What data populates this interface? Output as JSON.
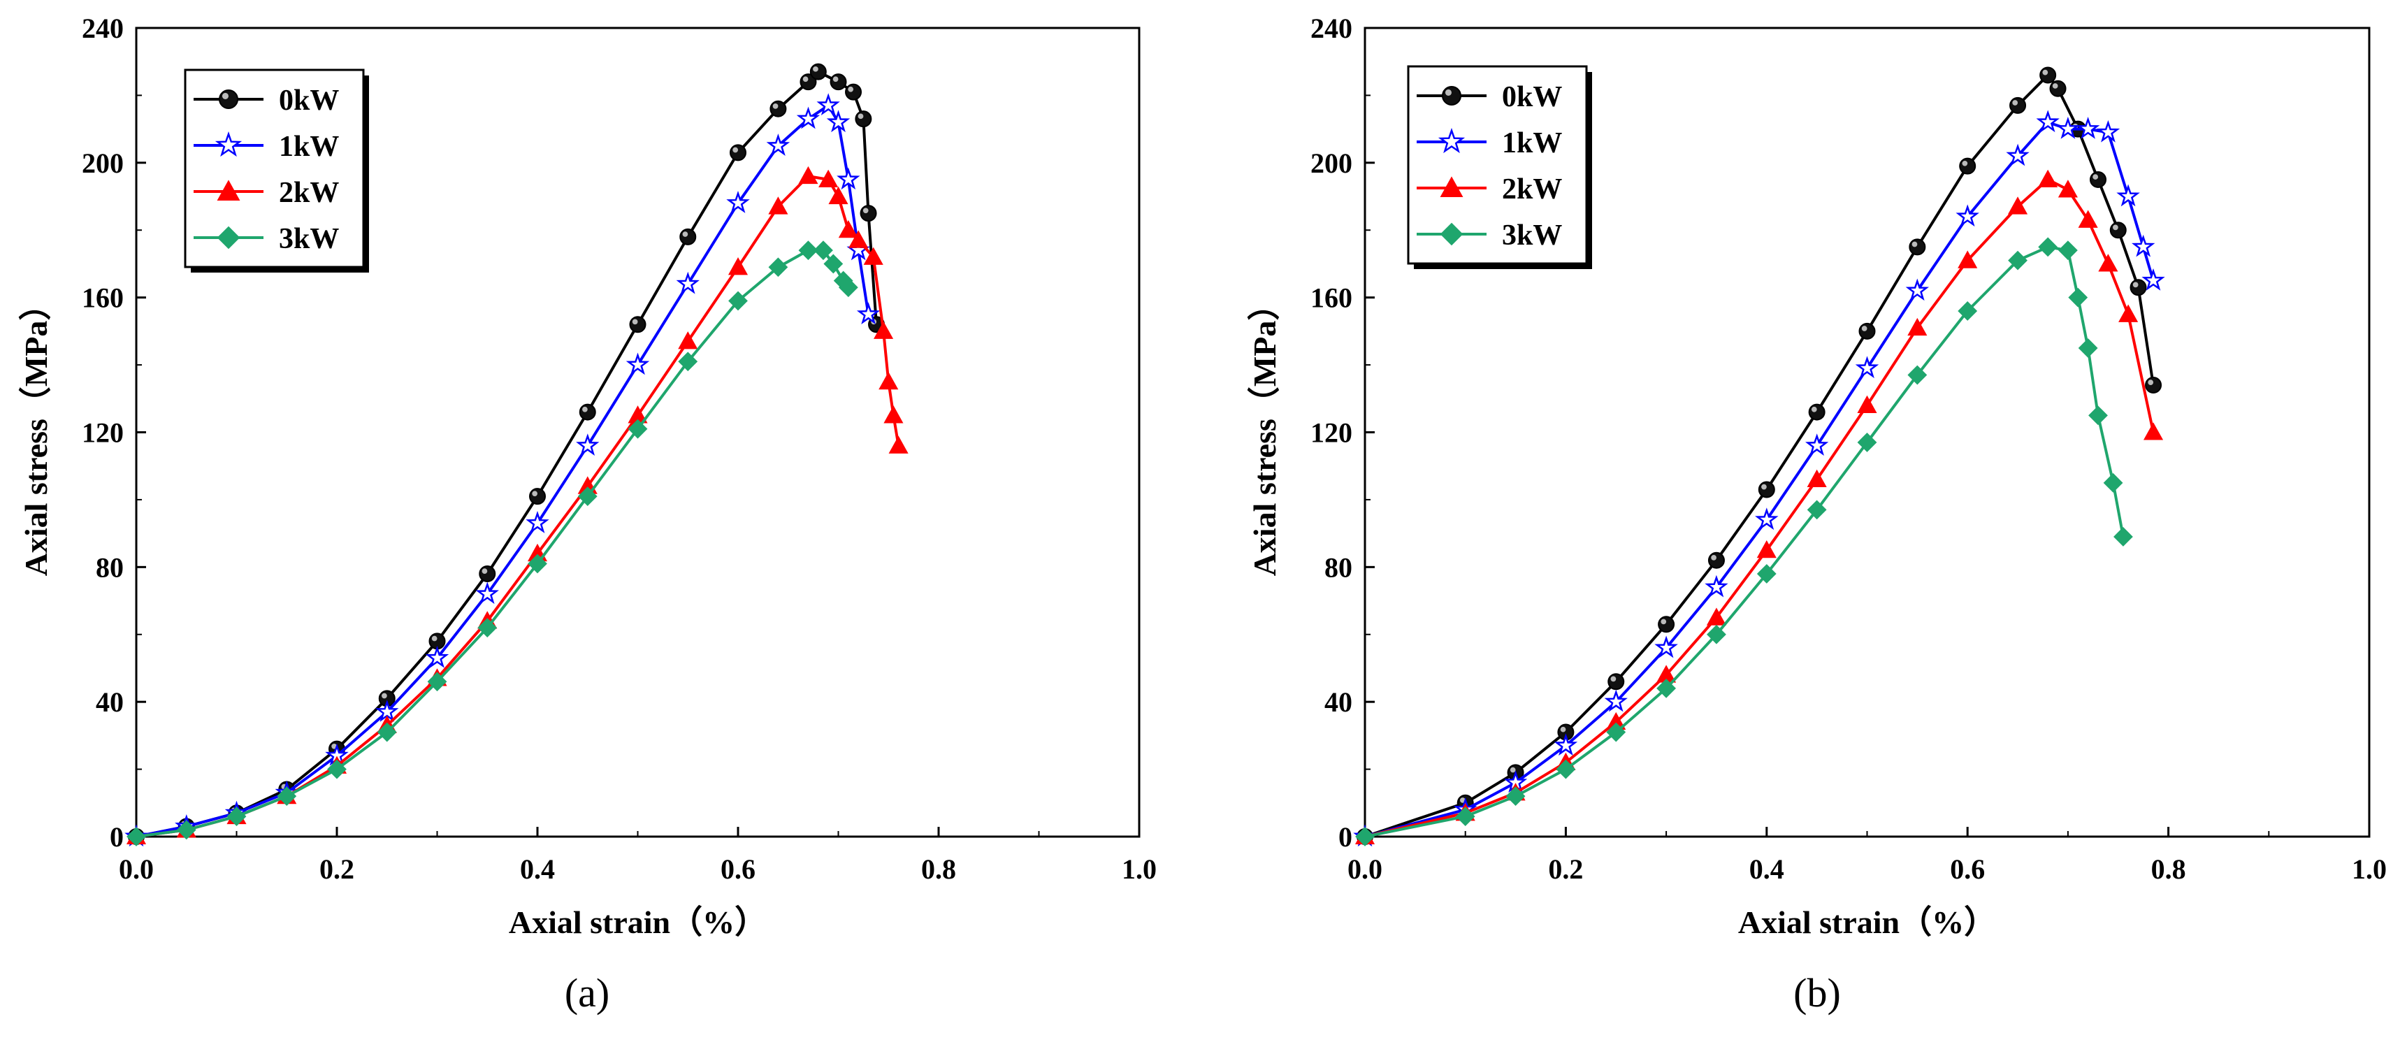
{
  "chart_data": [
    {
      "type": "line",
      "panel_label": "(a)",
      "xlabel": "Axial strain（%）",
      "ylabel": "Axial stress（MPa）",
      "xlim": [
        0,
        1.0
      ],
      "ylim": [
        0,
        240
      ],
      "xticks": [
        "0.0",
        "0.2",
        "0.4",
        "0.6",
        "0.8",
        "1.0"
      ],
      "yticks": [
        "0",
        "40",
        "80",
        "120",
        "160",
        "200",
        "240"
      ],
      "grid": false,
      "legend_position": "top-left",
      "series": [
        {
          "name": "0kW",
          "color": "#000000",
          "marker": "circle",
          "points": [
            [
              0.0,
              0
            ],
            [
              0.05,
              3
            ],
            [
              0.1,
              7
            ],
            [
              0.15,
              14
            ],
            [
              0.2,
              26
            ],
            [
              0.25,
              41
            ],
            [
              0.3,
              58
            ],
            [
              0.35,
              78
            ],
            [
              0.4,
              101
            ],
            [
              0.45,
              126
            ],
            [
              0.5,
              152
            ],
            [
              0.55,
              178
            ],
            [
              0.6,
              203
            ],
            [
              0.64,
              216
            ],
            [
              0.67,
              224
            ],
            [
              0.68,
              227
            ],
            [
              0.7,
              224
            ],
            [
              0.715,
              221
            ],
            [
              0.725,
              213
            ],
            [
              0.73,
              185
            ],
            [
              0.738,
              152
            ]
          ]
        },
        {
          "name": "1kW",
          "color": "#0000ff",
          "marker": "star",
          "points": [
            [
              0.0,
              0
            ],
            [
              0.05,
              3
            ],
            [
              0.1,
              7
            ],
            [
              0.15,
              13
            ],
            [
              0.2,
              24
            ],
            [
              0.25,
              37
            ],
            [
              0.3,
              53
            ],
            [
              0.35,
              72
            ],
            [
              0.4,
              93
            ],
            [
              0.45,
              116
            ],
            [
              0.5,
              140
            ],
            [
              0.55,
              164
            ],
            [
              0.6,
              188
            ],
            [
              0.64,
              205
            ],
            [
              0.67,
              213
            ],
            [
              0.69,
              217
            ],
            [
              0.7,
              212
            ],
            [
              0.71,
              195
            ],
            [
              0.72,
              174
            ],
            [
              0.73,
              155
            ]
          ]
        },
        {
          "name": "2kW",
          "color": "#ff0000",
          "marker": "triangle",
          "points": [
            [
              0.0,
              0
            ],
            [
              0.05,
              2
            ],
            [
              0.1,
              6
            ],
            [
              0.15,
              12
            ],
            [
              0.2,
              21
            ],
            [
              0.25,
              33
            ],
            [
              0.3,
              47
            ],
            [
              0.35,
              64
            ],
            [
              0.4,
              84
            ],
            [
              0.45,
              104
            ],
            [
              0.5,
              125
            ],
            [
              0.55,
              147
            ],
            [
              0.6,
              169
            ],
            [
              0.64,
              187
            ],
            [
              0.67,
              196
            ],
            [
              0.69,
              195
            ],
            [
              0.7,
              190
            ],
            [
              0.71,
              180
            ],
            [
              0.72,
              177
            ],
            [
              0.735,
              172
            ],
            [
              0.745,
              150
            ],
            [
              0.75,
              135
            ],
            [
              0.755,
              125
            ],
            [
              0.76,
              116
            ]
          ]
        },
        {
          "name": "3kW",
          "color": "#1fa66d",
          "marker": "diamond",
          "points": [
            [
              0.0,
              0
            ],
            [
              0.05,
              2
            ],
            [
              0.1,
              6
            ],
            [
              0.15,
              12
            ],
            [
              0.2,
              20
            ],
            [
              0.25,
              31
            ],
            [
              0.3,
              46
            ],
            [
              0.35,
              62
            ],
            [
              0.4,
              81
            ],
            [
              0.45,
              101
            ],
            [
              0.5,
              121
            ],
            [
              0.55,
              141
            ],
            [
              0.6,
              159
            ],
            [
              0.64,
              169
            ],
            [
              0.67,
              174
            ],
            [
              0.685,
              174
            ],
            [
              0.695,
              170
            ],
            [
              0.705,
              165
            ],
            [
              0.71,
              163
            ]
          ]
        }
      ]
    },
    {
      "type": "line",
      "panel_label": "(b)",
      "xlabel": "Axial strain（%）",
      "ylabel": "Axial stress（MPa）",
      "xlim": [
        0,
        1.0
      ],
      "ylim": [
        0,
        240
      ],
      "xticks": [
        "0.0",
        "0.2",
        "0.4",
        "0.6",
        "0.8",
        "1.0"
      ],
      "yticks": [
        "0",
        "40",
        "80",
        "120",
        "160",
        "200",
        "240"
      ],
      "grid": false,
      "legend_position": "top-left",
      "series": [
        {
          "name": "0kW",
          "color": "#000000",
          "marker": "circle",
          "points": [
            [
              0.0,
              0
            ],
            [
              0.1,
              10
            ],
            [
              0.15,
              19
            ],
            [
              0.2,
              31
            ],
            [
              0.25,
              46
            ],
            [
              0.3,
              63
            ],
            [
              0.35,
              82
            ],
            [
              0.4,
              103
            ],
            [
              0.45,
              126
            ],
            [
              0.5,
              150
            ],
            [
              0.55,
              175
            ],
            [
              0.6,
              199
            ],
            [
              0.65,
              217
            ],
            [
              0.68,
              226
            ],
            [
              0.69,
              222
            ],
            [
              0.71,
              210
            ],
            [
              0.73,
              195
            ],
            [
              0.75,
              180
            ],
            [
              0.77,
              163
            ],
            [
              0.785,
              134
            ]
          ]
        },
        {
          "name": "1kW",
          "color": "#0000ff",
          "marker": "star",
          "points": [
            [
              0.0,
              0
            ],
            [
              0.1,
              8
            ],
            [
              0.15,
              16
            ],
            [
              0.2,
              27
            ],
            [
              0.25,
              40
            ],
            [
              0.3,
              56
            ],
            [
              0.35,
              74
            ],
            [
              0.4,
              94
            ],
            [
              0.45,
              116
            ],
            [
              0.5,
              139
            ],
            [
              0.55,
              162
            ],
            [
              0.6,
              184
            ],
            [
              0.65,
              202
            ],
            [
              0.68,
              212
            ],
            [
              0.7,
              210
            ],
            [
              0.72,
              210
            ],
            [
              0.74,
              209
            ],
            [
              0.76,
              190
            ],
            [
              0.775,
              175
            ],
            [
              0.785,
              165
            ]
          ]
        },
        {
          "name": "2kW",
          "color": "#ff0000",
          "marker": "triangle",
          "points": [
            [
              0.0,
              0
            ],
            [
              0.1,
              7
            ],
            [
              0.15,
              13
            ],
            [
              0.2,
              22
            ],
            [
              0.25,
              34
            ],
            [
              0.3,
              48
            ],
            [
              0.35,
              65
            ],
            [
              0.4,
              85
            ],
            [
              0.45,
              106
            ],
            [
              0.5,
              128
            ],
            [
              0.55,
              151
            ],
            [
              0.6,
              171
            ],
            [
              0.65,
              187
            ],
            [
              0.68,
              195
            ],
            [
              0.7,
              192
            ],
            [
              0.72,
              183
            ],
            [
              0.74,
              170
            ],
            [
              0.76,
              155
            ],
            [
              0.785,
              120
            ]
          ]
        },
        {
          "name": "3kW",
          "color": "#1fa66d",
          "marker": "diamond",
          "points": [
            [
              0.0,
              0
            ],
            [
              0.1,
              6
            ],
            [
              0.15,
              12
            ],
            [
              0.2,
              20
            ],
            [
              0.25,
              31
            ],
            [
              0.3,
              44
            ],
            [
              0.35,
              60
            ],
            [
              0.4,
              78
            ],
            [
              0.45,
              97
            ],
            [
              0.5,
              117
            ],
            [
              0.55,
              137
            ],
            [
              0.6,
              156
            ],
            [
              0.65,
              171
            ],
            [
              0.68,
              175
            ],
            [
              0.7,
              174
            ],
            [
              0.71,
              160
            ],
            [
              0.72,
              145
            ],
            [
              0.73,
              125
            ],
            [
              0.745,
              105
            ],
            [
              0.755,
              89
            ]
          ]
        }
      ]
    }
  ]
}
